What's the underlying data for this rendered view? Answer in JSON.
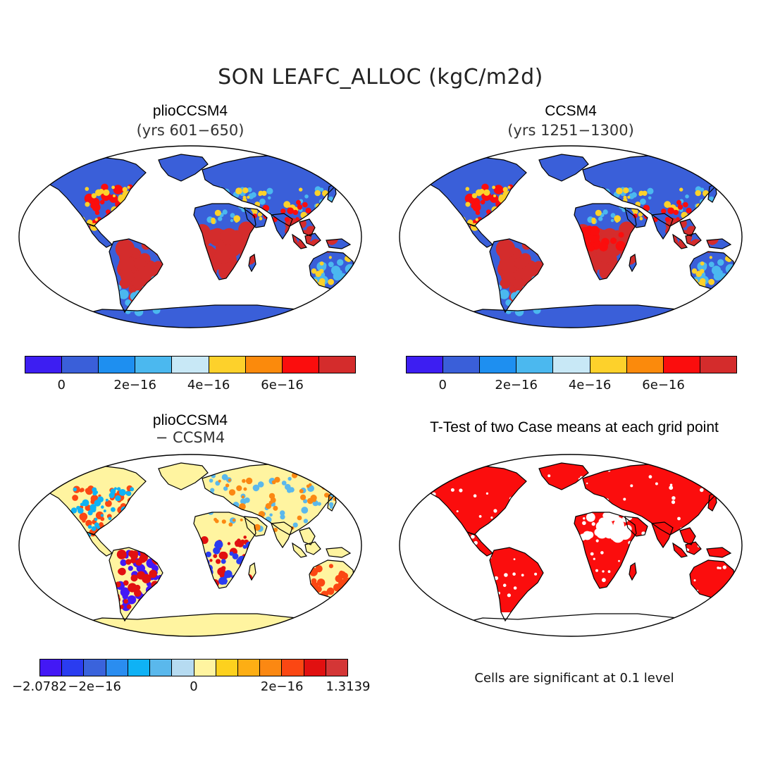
{
  "title": "SON LEAFC_ALLOC (kgC/m2d)",
  "panels": {
    "top_left": {
      "title": "plioCCSM4",
      "subtitle": "(yrs 601−650)"
    },
    "top_right": {
      "title": "CCSM4",
      "subtitle": "(yrs 1251−1300)"
    },
    "bottom_left": {
      "title": "plioCCSM4",
      "subtitle": "− CCSM4"
    },
    "bottom_right": {
      "title": "T-Test of two Case means at each grid point"
    }
  },
  "colorbar_abs": {
    "colors": [
      "#3d1ef2",
      "#3a5fd9",
      "#1e8ff0",
      "#4bb8ef",
      "#c8e8f6",
      "#fdd12b",
      "#fb8a0c",
      "#fb0d0d",
      "#d42c2c"
    ],
    "ticks": [
      "0",
      "2e−16",
      "4e−16",
      "6e−16"
    ]
  },
  "colorbar_diff": {
    "colors": [
      "#4318f5",
      "#2a3cf0",
      "#3a63dc",
      "#2a8df0",
      "#0fb2f5",
      "#5ab8ec",
      "#b6dbf1",
      "#fff4a0",
      "#fdd11e",
      "#fdae14",
      "#fb8812",
      "#fb4713",
      "#e11010",
      "#d43636"
    ],
    "ticks": [
      "−2.0782",
      "−2e−16",
      "0",
      "2e−16",
      "1.3139"
    ]
  },
  "note": "Cells are significant at 0.1 level",
  "colors": {
    "ocean": "#ffffff",
    "land_abs": "#3a5fd9",
    "tropics_abs": "#d42c2c",
    "land_diff": "#fff4a0",
    "significant": "#fb0d0d"
  }
}
